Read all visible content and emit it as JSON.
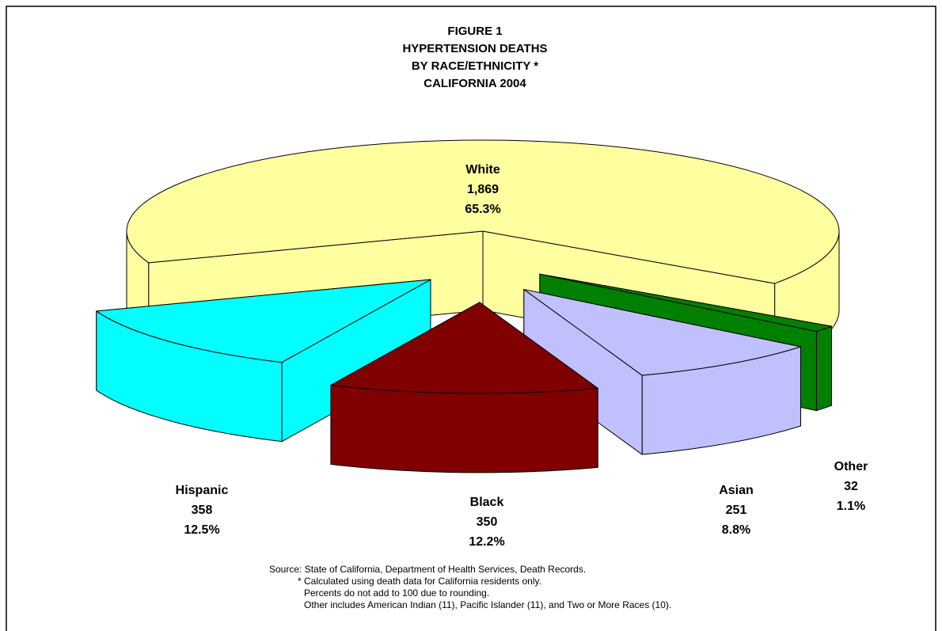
{
  "chart_data": {
    "type": "pie3d",
    "title": [
      "FIGURE 1",
      "HYPERTENSION DEATHS",
      "BY RACE/ETHNICITY *",
      "CALIFORNIA 2004"
    ],
    "categories": [
      "White",
      "Hispanic",
      "Black",
      "Asian",
      "Other"
    ],
    "values": [
      1869,
      358,
      350,
      251,
      32
    ],
    "value_labels": [
      "1,869",
      "358",
      "350",
      "251",
      "32"
    ],
    "percents": [
      65.3,
      12.5,
      12.2,
      8.8,
      1.1
    ],
    "percent_labels": [
      "65.3%",
      "12.5%",
      "12.2%",
      "8.8%",
      "1.1%"
    ],
    "colors": [
      "#ffffa0",
      "#00ffff",
      "#800000",
      "#c0c0ff",
      "#008000"
    ],
    "footnotes": [
      "Source:  State of California, Department of Health Services, Death Records.",
      "*  Calculated using death data for California residents only.",
      "Percents do not add to 100 due to rounding.",
      "Other includes American Indian (11), Pacific Islander (11), and Two or More Races (10)."
    ]
  }
}
